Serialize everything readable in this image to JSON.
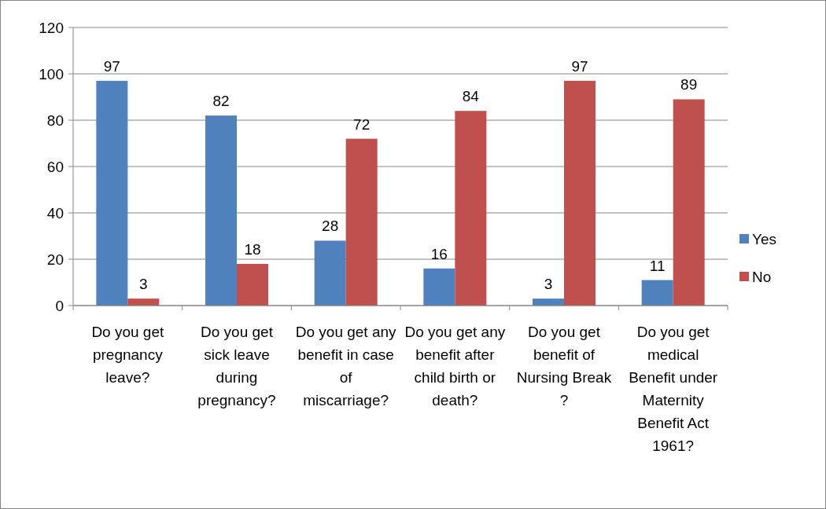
{
  "chart_data": {
    "type": "bar",
    "categories": [
      "Do you get pregnancy leave?",
      "Do you get sick leave during pregnancy?",
      "Do you get any benefit in case of miscarriage?",
      "Do you get any benefit after child birth or death?",
      "Do you get benefit of Nursing Break ?",
      "Do you get medical Benefit under Maternity Benefit Act 1961?"
    ],
    "series": [
      {
        "name": "Yes",
        "color": "#4f81bd",
        "values": [
          97,
          82,
          28,
          16,
          3,
          11
        ]
      },
      {
        "name": "No",
        "color": "#c0504d",
        "values": [
          3,
          18,
          72,
          84,
          97,
          89
        ]
      }
    ],
    "ylim": [
      0,
      120
    ],
    "yticks": [
      0,
      20,
      40,
      60,
      80,
      100,
      120
    ],
    "grid": "y",
    "legend": "right",
    "data_labels": true
  }
}
